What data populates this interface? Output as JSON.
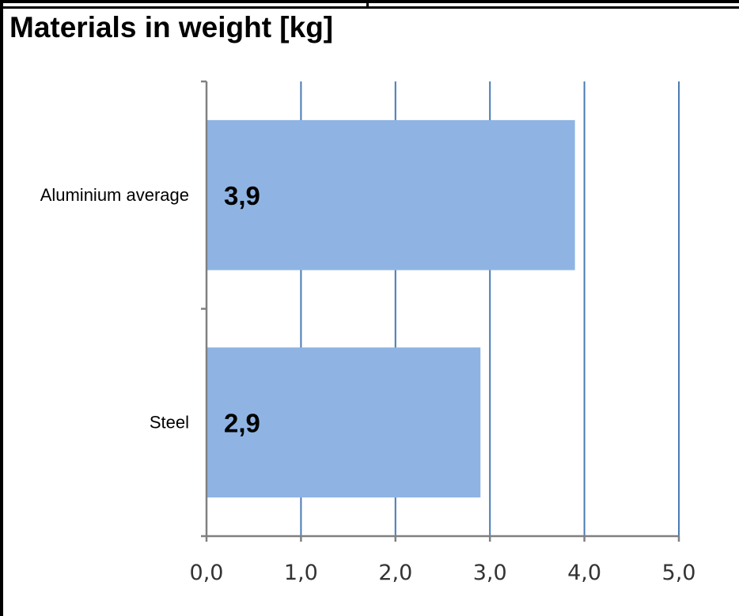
{
  "chart_data": {
    "type": "bar",
    "orientation": "horizontal",
    "title": "Materials in weight [kg]",
    "categories": [
      "Aluminium average",
      "Steel"
    ],
    "values": [
      3.9,
      2.9
    ],
    "value_labels": [
      "3,9",
      "2,9"
    ],
    "xlim": [
      0,
      5
    ],
    "ticks": [
      0,
      1,
      2,
      3,
      4,
      5
    ],
    "tick_labels": [
      "0,0",
      "1,0",
      "2,0",
      "3,0",
      "4,0",
      "5,0"
    ],
    "grid": true,
    "legend": "none",
    "colors": {
      "bar": "#8fb4e3",
      "grid": "#4a7ab4",
      "axis": "#808080"
    }
  }
}
